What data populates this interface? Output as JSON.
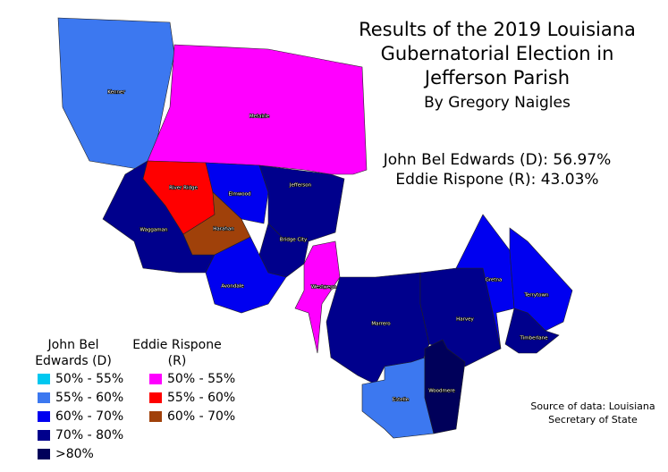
{
  "title": [
    "Results of the 2019 Louisiana",
    "Gubernatorial Election in",
    "Jefferson Parish"
  ],
  "author": "By Gregory Naigles",
  "results": [
    "John Bel Edwards (D): 56.97%",
    "Eddie Rispone (R): 43.03%"
  ],
  "legend": {
    "dem_heading": [
      "John Bel",
      "Edwards (D)"
    ],
    "rep_heading": [
      "Eddie Rispone",
      "(R)"
    ],
    "dem_items": [
      {
        "label": "50% - 55%",
        "color": "#00c8f0"
      },
      {
        "label": "55% - 60%",
        "color": "#3c78f0"
      },
      {
        "label": "60% - 70%",
        "color": "#0000f0"
      },
      {
        "label": "70% - 80%",
        "color": "#00008c"
      },
      {
        "label": ">80%",
        "color": "#00005a"
      }
    ],
    "rep_items": [
      {
        "label": "50% - 55%",
        "color": "#ff00ff"
      },
      {
        "label": "55% - 60%",
        "color": "#ff0000"
      },
      {
        "label": "60% - 70%",
        "color": "#a0410a"
      }
    ]
  },
  "regions": [
    {
      "name": "Kenner",
      "color": "#3c78f0"
    },
    {
      "name": "Metairie",
      "color": "#ff00ff"
    },
    {
      "name": "River Ridge",
      "color": "#ff0000"
    },
    {
      "name": "Harahan",
      "color": "#a0410a"
    },
    {
      "name": "Elmwood",
      "color": "#0000f0"
    },
    {
      "name": "Jefferson",
      "color": "#00008c"
    },
    {
      "name": "Bridge City",
      "color": "#00008c"
    },
    {
      "name": "Waggaman",
      "color": "#00008c"
    },
    {
      "name": "Avondale",
      "color": "#0000f0"
    },
    {
      "name": "Westwego",
      "color": "#ff00ff"
    },
    {
      "name": "Marrero",
      "color": "#00008c"
    },
    {
      "name": "Harvey",
      "color": "#00008c"
    },
    {
      "name": "Gretna",
      "color": "#0000f0"
    },
    {
      "name": "Terrytown",
      "color": "#0000f0"
    },
    {
      "name": "Timberlane",
      "color": "#00008c"
    },
    {
      "name": "Woodmere",
      "color": "#00005a"
    },
    {
      "name": "Estelle",
      "color": "#3c78f0"
    }
  ],
  "source": [
    "Source of data: Louisiana",
    "Secretary of State"
  ]
}
